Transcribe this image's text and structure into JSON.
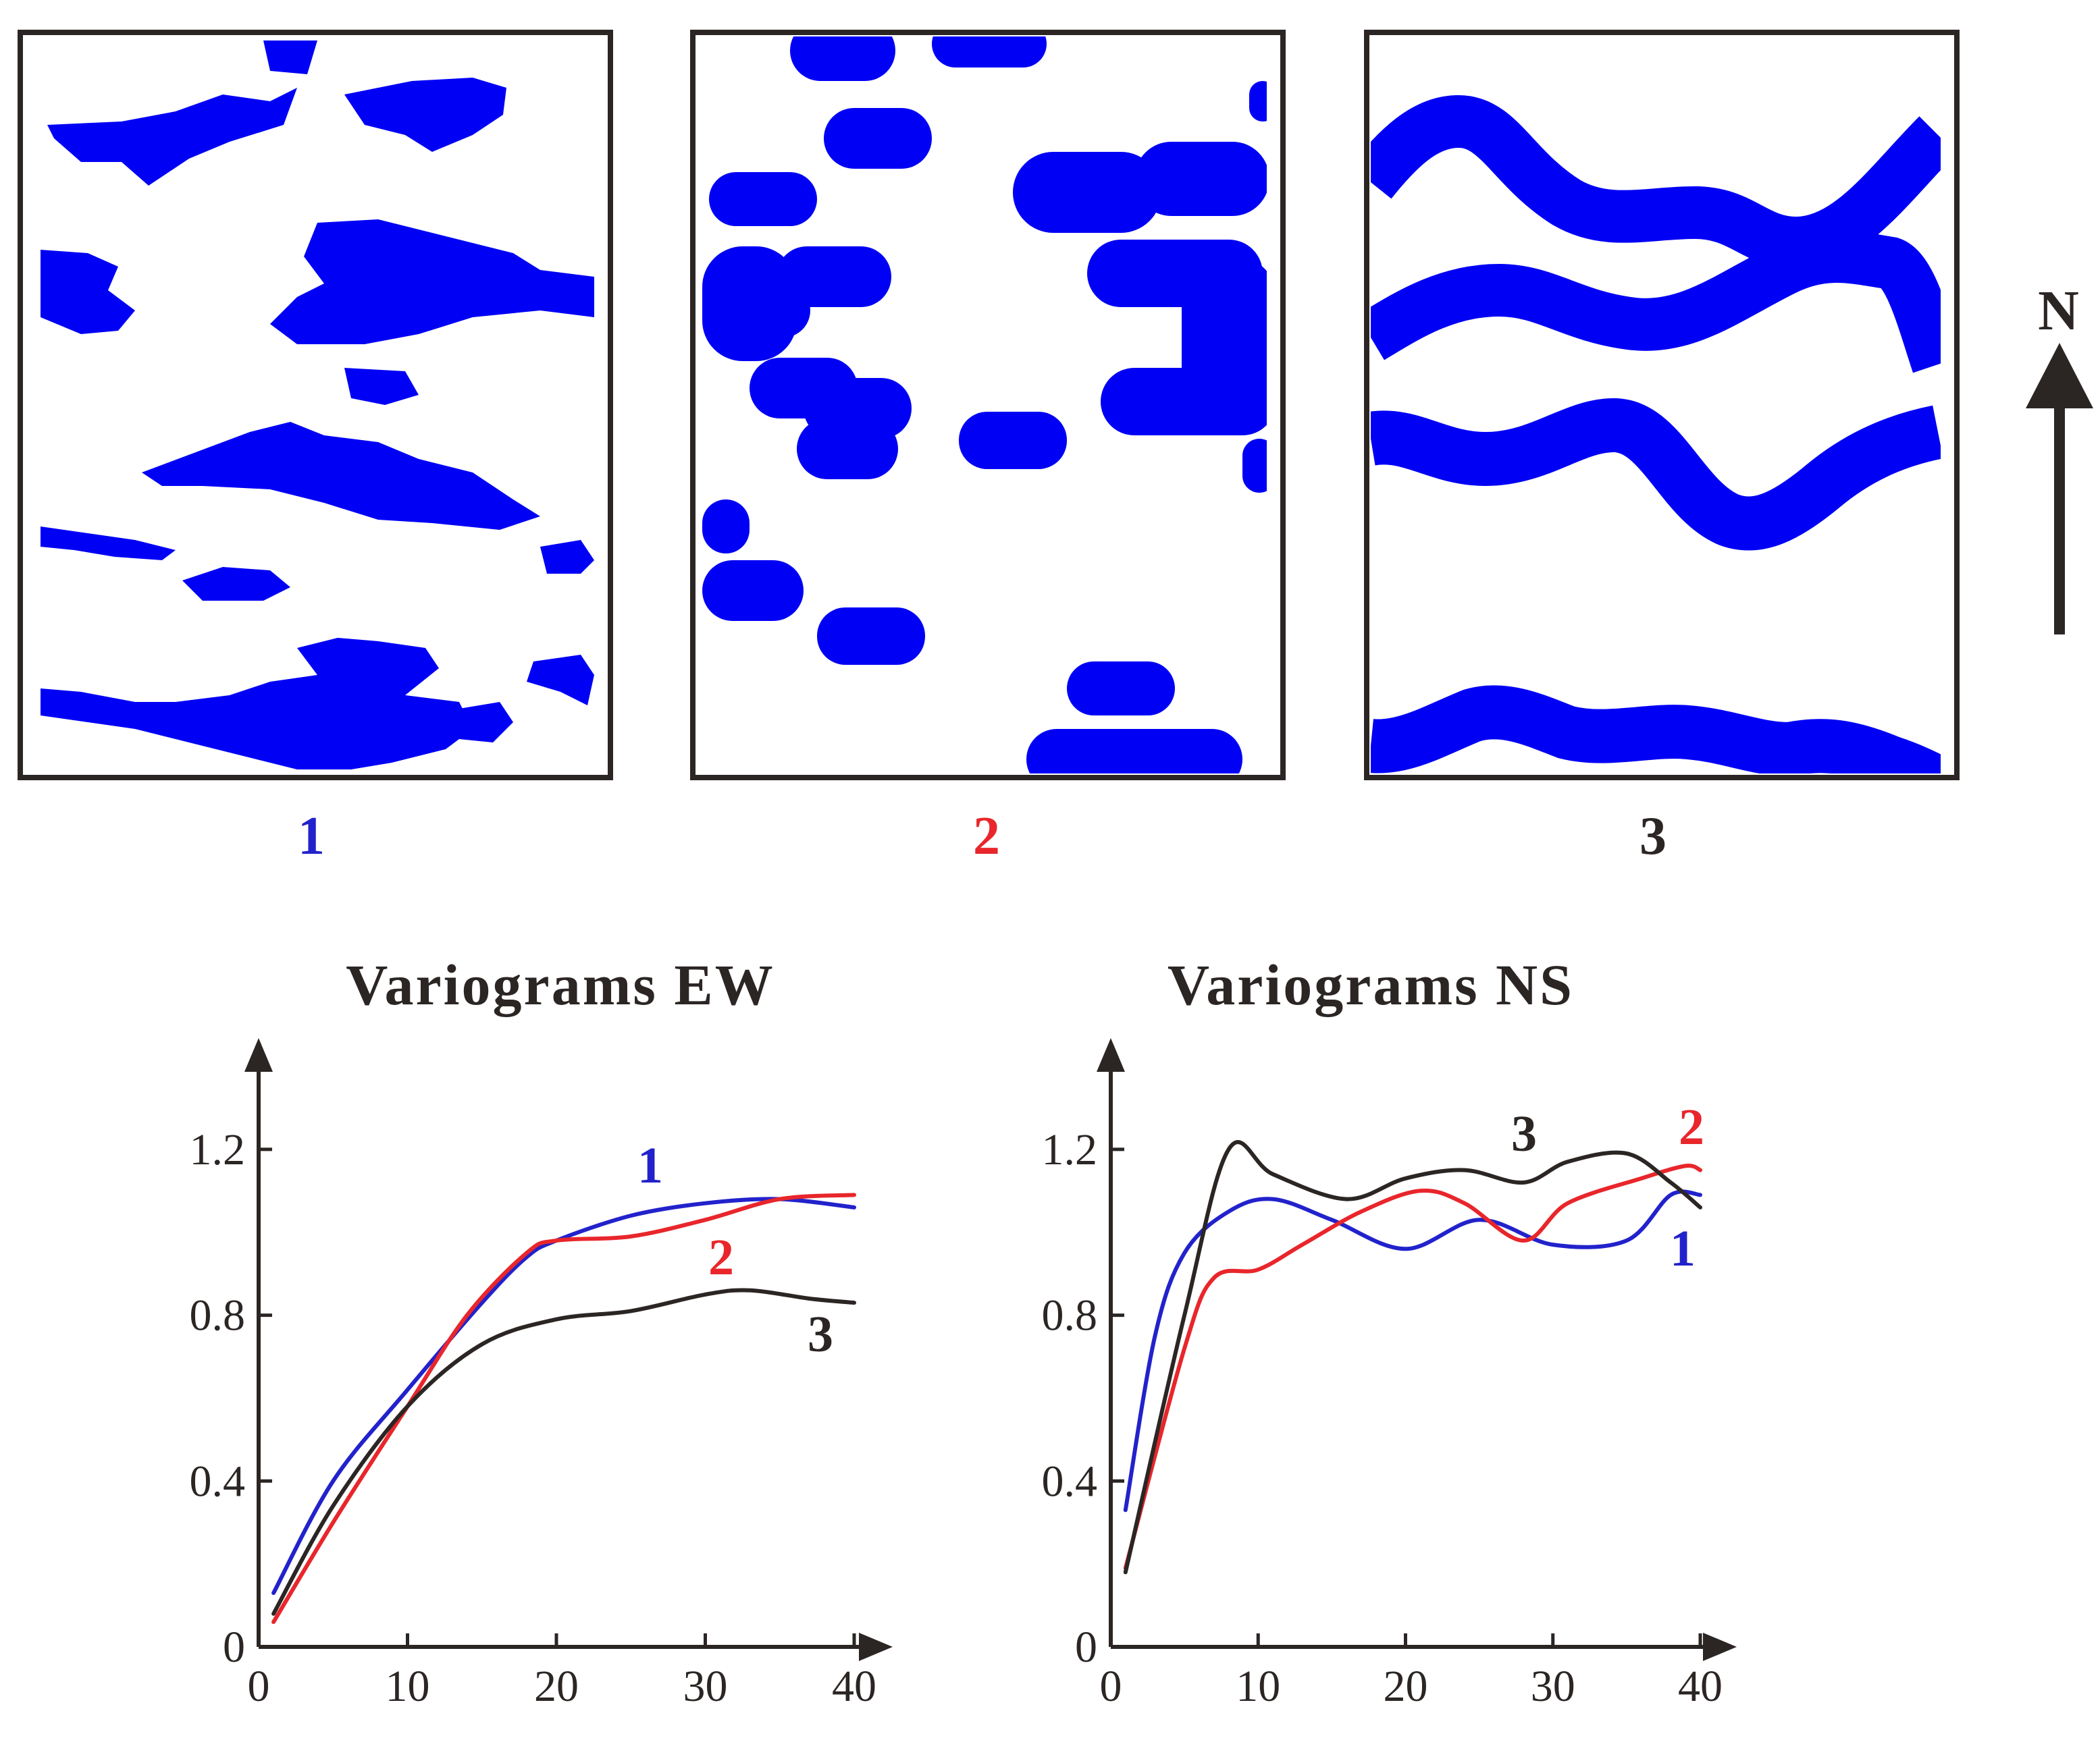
{
  "panels": {
    "labels": [
      "1",
      "2",
      "3"
    ],
    "label_colors": [
      "#2222cc",
      "#e8262b",
      "#2b2624"
    ],
    "fill_color": "#0000f5",
    "north_label": "N"
  },
  "series_colors": {
    "1": "#2222cc",
    "2": "#e8262b",
    "3": "#2b2624"
  },
  "chart_data": [
    {
      "type": "line",
      "title": "Variograms EW",
      "xlabel": "",
      "ylabel": "",
      "xlim": [
        0,
        40
      ],
      "ylim": [
        0,
        1.4
      ],
      "xticks": [
        "0",
        "10",
        "20",
        "30",
        "40"
      ],
      "yticks": [
        "0",
        "0.4",
        "0.8",
        "1.2"
      ],
      "series": [
        {
          "name": "1",
          "x": [
            1,
            5,
            10,
            15,
            18,
            20,
            25,
            30,
            35,
            40
          ],
          "y": [
            0.13,
            0.4,
            0.62,
            0.83,
            0.94,
            0.98,
            1.04,
            1.07,
            1.08,
            1.06
          ]
        },
        {
          "name": "2",
          "x": [
            1,
            5,
            10,
            14,
            18,
            20,
            25,
            30,
            35,
            40
          ],
          "y": [
            0.06,
            0.3,
            0.58,
            0.8,
            0.95,
            0.98,
            0.99,
            1.03,
            1.08,
            1.09
          ]
        },
        {
          "name": "3",
          "x": [
            1,
            5,
            10,
            15,
            20,
            25,
            30,
            33,
            37,
            40
          ],
          "y": [
            0.08,
            0.34,
            0.58,
            0.73,
            0.79,
            0.81,
            0.85,
            0.86,
            0.84,
            0.83
          ]
        }
      ]
    },
    {
      "type": "line",
      "title": "Variograms NS",
      "xlabel": "",
      "ylabel": "",
      "xlim": [
        0,
        40
      ],
      "ylim": [
        0,
        1.4
      ],
      "xticks": [
        "0",
        "10",
        "20",
        "30",
        "40"
      ],
      "yticks": [
        "0",
        "0.4",
        "0.8",
        "1.2"
      ],
      "series": [
        {
          "name": "1",
          "x": [
            1,
            3,
            5,
            8,
            11,
            15,
            20,
            25,
            30,
            35,
            38,
            40
          ],
          "y": [
            0.33,
            0.75,
            0.95,
            1.05,
            1.08,
            1.03,
            0.96,
            1.03,
            0.97,
            0.98,
            1.09,
            1.09
          ]
        },
        {
          "name": "2",
          "x": [
            1,
            5,
            7,
            10,
            13,
            17,
            21,
            24,
            28,
            31,
            36,
            39,
            40
          ],
          "y": [
            0.19,
            0.72,
            0.89,
            0.91,
            0.97,
            1.05,
            1.1,
            1.07,
            0.98,
            1.07,
            1.13,
            1.16,
            1.15
          ]
        },
        {
          "name": "3",
          "x": [
            1,
            5,
            8,
            11,
            16,
            20,
            24,
            28,
            31,
            35,
            38,
            40
          ],
          "y": [
            0.18,
            0.8,
            1.2,
            1.14,
            1.08,
            1.13,
            1.15,
            1.12,
            1.17,
            1.19,
            1.12,
            1.06
          ]
        }
      ]
    }
  ],
  "series_labels": [
    [
      {
        "text": "1",
        "series": "1"
      },
      {
        "text": "2",
        "series": "2"
      },
      {
        "text": "3",
        "series": "3"
      }
    ],
    [
      {
        "text": "1",
        "series": "1"
      },
      {
        "text": "2",
        "series": "2"
      },
      {
        "text": "3",
        "series": "3"
      }
    ]
  ]
}
